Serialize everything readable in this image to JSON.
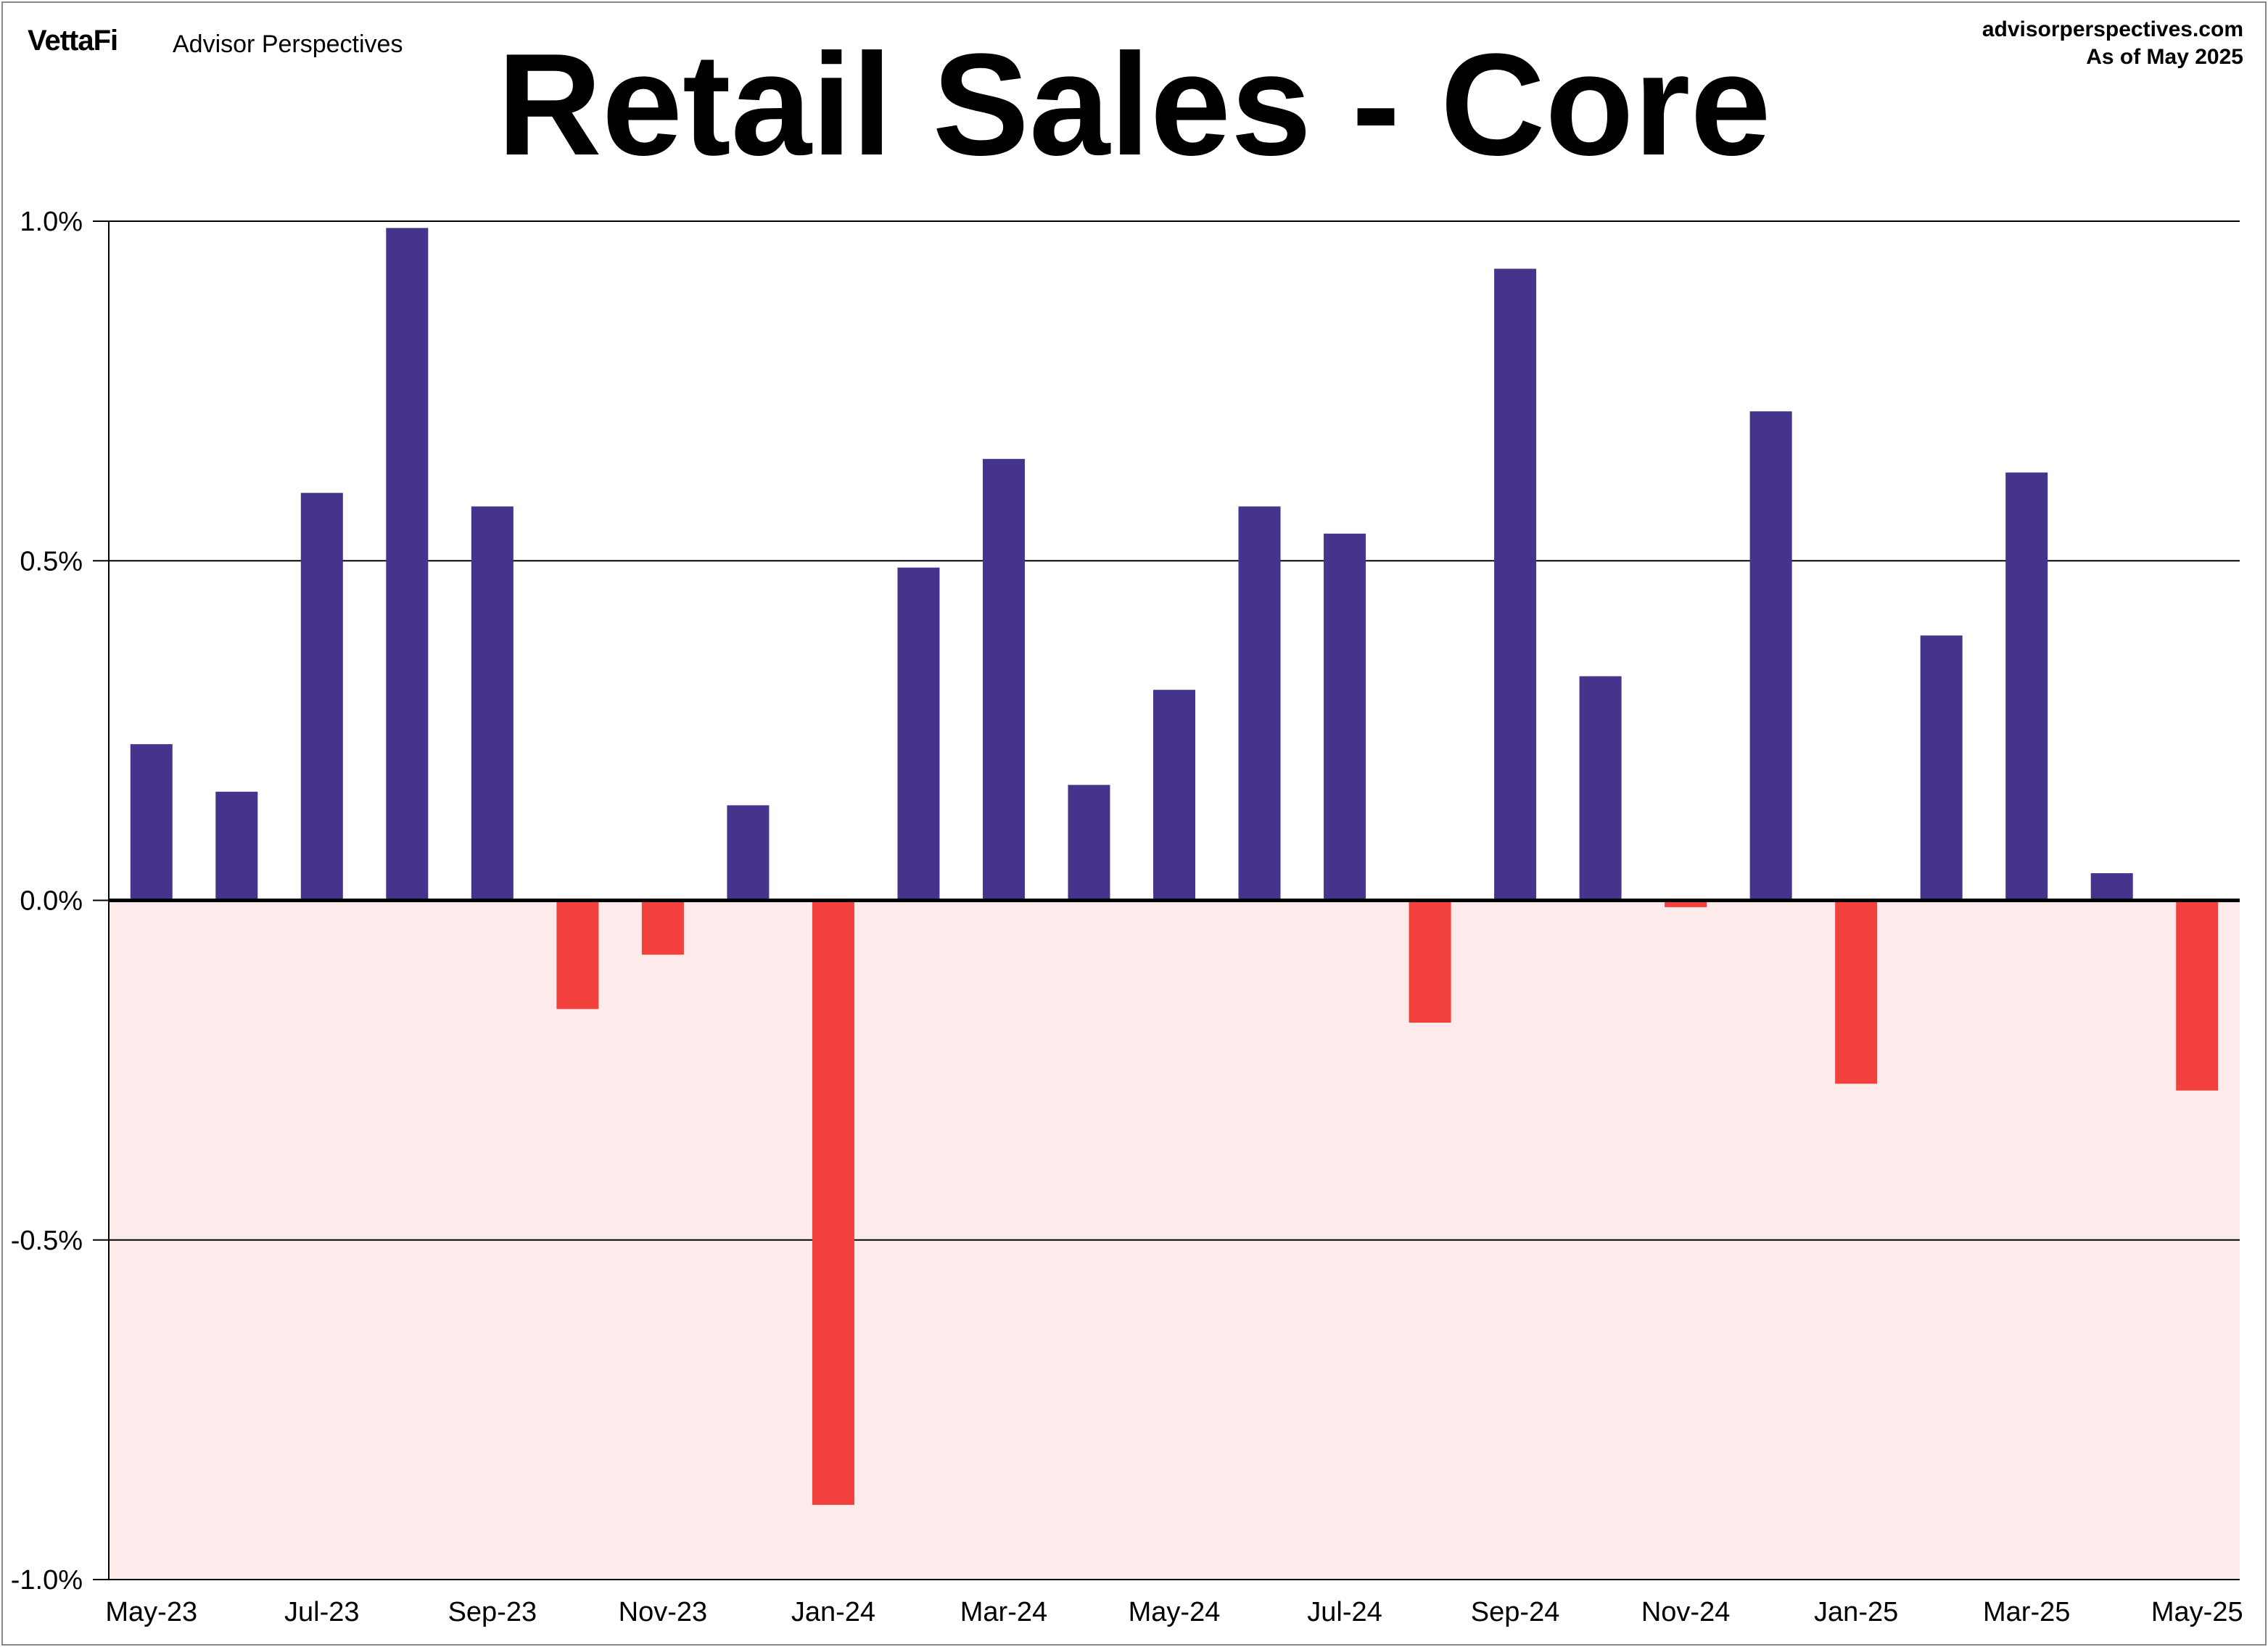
{
  "header": {
    "logo_text": "VettaFi",
    "brand_text": "Advisor Perspectives",
    "site": "advisorperspectives.com",
    "as_of": "As of May 2025"
  },
  "colors": {
    "positive": "#46348c",
    "negative": "#f2403c",
    "negative_zone": "#fdebeb"
  },
  "chart_data": {
    "type": "bar",
    "title": "Retail Sales - Core",
    "xlabel": "",
    "ylabel": "",
    "ylim": [
      -1.0,
      1.0
    ],
    "y_ticks": [
      "1.0%",
      "0.5%",
      "0.0%",
      "-0.5%",
      "-1.0%"
    ],
    "y_tick_values": [
      1.0,
      0.5,
      0.0,
      -0.5,
      -1.0
    ],
    "x_tick_labels": [
      "May-23",
      "Jul-23",
      "Sep-23",
      "Nov-23",
      "Jan-24",
      "Mar-24",
      "May-24",
      "Jul-24",
      "Sep-24",
      "Nov-24",
      "Jan-25",
      "Mar-25",
      "May-25"
    ],
    "grid": true,
    "unit": "%",
    "categories": [
      "May-23",
      "Jun-23",
      "Jul-23",
      "Aug-23",
      "Sep-23",
      "Oct-23",
      "Nov-23",
      "Dec-23",
      "Jan-24",
      "Feb-24",
      "Mar-24",
      "Apr-24",
      "May-24",
      "Jun-24",
      "Jul-24",
      "Aug-24",
      "Sep-24",
      "Oct-24",
      "Nov-24",
      "Dec-24",
      "Jan-25",
      "Feb-25",
      "Mar-25",
      "Apr-25",
      "May-25"
    ],
    "values": [
      0.23,
      0.16,
      0.6,
      0.99,
      0.58,
      -0.16,
      -0.08,
      0.14,
      -0.89,
      0.49,
      0.65,
      0.17,
      0.31,
      0.58,
      0.54,
      -0.18,
      0.93,
      0.33,
      -0.01,
      0.72,
      -0.27,
      0.39,
      0.63,
      0.04,
      -0.28
    ]
  }
}
